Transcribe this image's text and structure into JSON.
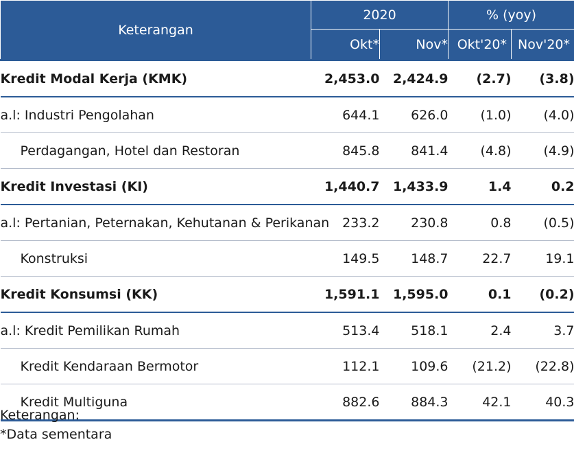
{
  "header": {
    "description": "Keterangan",
    "year_group": "2020",
    "yoy_group": "% (yoy)",
    "cols": [
      "Okt*",
      "Nov*",
      "Okt'20*",
      "Nov'20*"
    ]
  },
  "rows": [
    {
      "label": "Kredit Modal Kerja (KMK)",
      "okt": "2,453.0",
      "nov": "2,424.9",
      "yoy_okt": "(2.7)",
      "yoy_nov": "(3.8)"
    },
    {
      "label": "a.l: Industri Pengolahan",
      "okt": "644.1",
      "nov": "626.0",
      "yoy_okt": "(1.0)",
      "yoy_nov": "(4.0)"
    },
    {
      "label": "Perdagangan, Hotel dan Restoran",
      "okt": "845.8",
      "nov": "841.4",
      "yoy_okt": "(4.8)",
      "yoy_nov": "(4.9)"
    },
    {
      "label": "Kredit Investasi (KI)",
      "okt": "1,440.7",
      "nov": "1,433.9",
      "yoy_okt": "1.4",
      "yoy_nov": "0.2"
    },
    {
      "label": "a.l: Pertanian, Peternakan, Kehutanan & Perikanan",
      "okt": "233.2",
      "nov": "230.8",
      "yoy_okt": "0.8",
      "yoy_nov": "(0.5)"
    },
    {
      "label": "Konstruksi",
      "okt": "149.5",
      "nov": "148.7",
      "yoy_okt": "22.7",
      "yoy_nov": "19.1"
    },
    {
      "label": "Kredit Konsumsi (KK)",
      "okt": "1,591.1",
      "nov": "1,595.0",
      "yoy_okt": "0.1",
      "yoy_nov": "(0.2)"
    },
    {
      "label": "a.l: Kredit Pemilikan Rumah",
      "okt": "513.4",
      "nov": "518.1",
      "yoy_okt": "2.4",
      "yoy_nov": "3.7"
    },
    {
      "label": "Kredit Kendaraan Bermotor",
      "okt": "112.1",
      "nov": "109.6",
      "yoy_okt": "(21.2)",
      "yoy_nov": "(22.8)"
    },
    {
      "label": "Kredit Multiguna",
      "okt": "882.6",
      "nov": "884.3",
      "yoy_okt": "42.1",
      "yoy_nov": "40.3"
    }
  ],
  "footnote": {
    "title": "Keterangan:",
    "note": "*Data sementara"
  },
  "colors": {
    "header_bg": "#2c5b97",
    "header_text": "#ffffff",
    "rule": "#2c5b97"
  }
}
